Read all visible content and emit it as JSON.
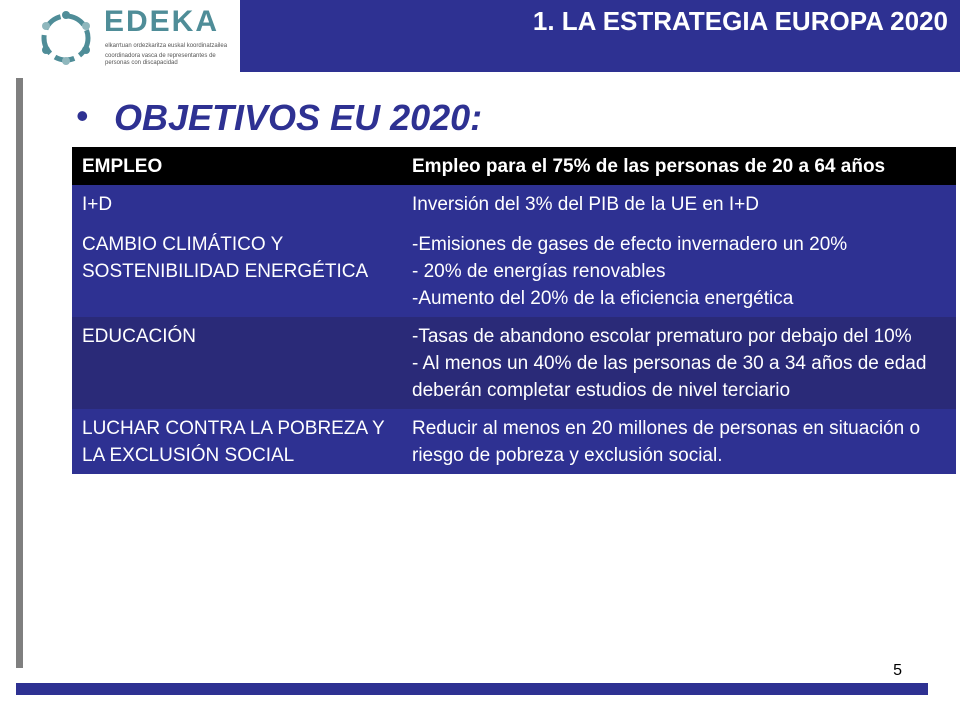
{
  "logo": {
    "wordmark": "EDEKA",
    "tagline_1": "elkarrtuan ordezkaritza euskal koordinatzailea",
    "tagline_2": "coordinadora vasca de representantes de personas con discapacidad"
  },
  "header": {
    "title": "1. LA ESTRATEGIA EUROPA 2020"
  },
  "heading": {
    "bullet": "•",
    "text": "OBJETIVOS EU 2020:"
  },
  "table": {
    "rows": [
      {
        "label": "EMPLEO",
        "lines": [
          "Empleo para el 75% de las personas de 20 a 64 años"
        ]
      },
      {
        "label": "I+D",
        "lines": [
          "Inversión del 3% del PIB de la UE en I+D"
        ]
      },
      {
        "label": "CAMBIO CLIMÁTICO Y SOSTENIBILIDAD ENERGÉTICA",
        "lines": [
          "-Emisiones de gases de efecto invernadero un 20%",
          "- 20% de energías renovables",
          "-Aumento del 20% de la eficiencia energética"
        ]
      },
      {
        "label": "EDUCACIÓN",
        "lines": [
          "-Tasas de abandono escolar prematuro por debajo del 10%",
          "- Al menos un 40% de las personas de 30 a 34 años de edad deberán completar estudios de nivel terciario"
        ]
      },
      {
        "label": "LUCHAR CONTRA LA POBREZA Y LA EXCLUSIÓN SOCIAL",
        "lines": [
          "Reducir al menos en 20 millones de personas en situación o riesgo de pobreza y exclusión social."
        ]
      }
    ]
  },
  "footer": {
    "page_number": "5"
  },
  "colors": {
    "brand_blue": "#2e3192",
    "row_dark": "#2a2a78",
    "header_black": "#000000",
    "logo_teal": "#4f8d98"
  }
}
